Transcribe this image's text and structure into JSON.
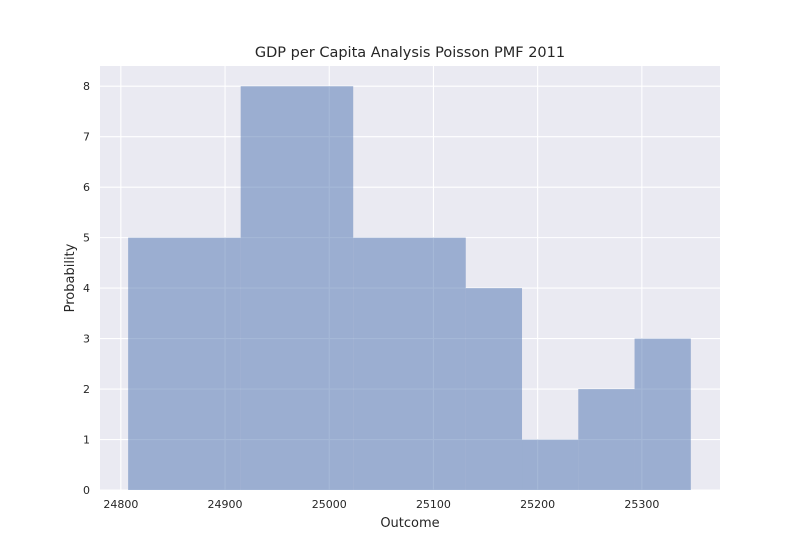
{
  "chart_data": {
    "type": "bar",
    "title": "GDP per Capita Analysis Poisson PMF 2011",
    "xlabel": "Outcome",
    "ylabel": "Probability",
    "xlim": [
      24780,
      25375
    ],
    "ylim": [
      0,
      8.4
    ],
    "grid": true,
    "bar_color": "#4c72b0",
    "bar_opacity": 0.5,
    "plot_background": "#eaeaf2",
    "grid_color": "#ffffff",
    "bins": [
      {
        "x0": 24807,
        "x1": 24915,
        "value": 5
      },
      {
        "x0": 24915,
        "x1": 25023,
        "value": 8
      },
      {
        "x0": 25023,
        "x1": 25131,
        "value": 5
      },
      {
        "x0": 25131,
        "x1": 25185,
        "value": 4
      },
      {
        "x0": 25185,
        "x1": 25239,
        "value": 1
      },
      {
        "x0": 25239,
        "x1": 25293,
        "value": 2
      },
      {
        "x0": 25293,
        "x1": 25347,
        "value": 3
      }
    ],
    "x_ticks": [
      24800,
      24900,
      25000,
      25100,
      25200,
      25300
    ],
    "x_tick_labels": [
      "24800",
      "24900",
      "25000",
      "25100",
      "25200",
      "25300"
    ],
    "y_ticks": [
      0,
      1,
      2,
      3,
      4,
      5,
      6,
      7,
      8
    ],
    "y_tick_labels": [
      "0",
      "1",
      "2",
      "3",
      "4",
      "5",
      "6",
      "7",
      "8"
    ]
  }
}
